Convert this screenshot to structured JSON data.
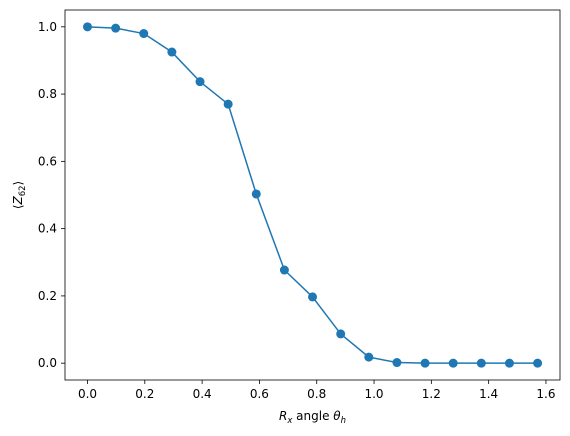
{
  "chart_data": {
    "type": "line",
    "title": "",
    "xlabel": {
      "base": "R",
      "sub": "x",
      "mid": " angle ",
      "theta": "θ",
      "theta_sub": "h"
    },
    "ylabel": {
      "left": "⟨",
      "base": "Z",
      "sub": "62",
      "right": "⟩"
    },
    "xlim": [
      -0.0785,
      1.649
    ],
    "ylim": [
      -0.05,
      1.05
    ],
    "xticks": [
      0.0,
      0.2,
      0.4,
      0.6,
      0.8,
      1.0,
      1.2,
      1.4,
      1.6
    ],
    "yticks": [
      0.0,
      0.2,
      0.4,
      0.6,
      0.8,
      1.0
    ],
    "xtick_labels": [
      "0.0",
      "0.2",
      "0.4",
      "0.6",
      "0.8",
      "1.0",
      "1.2",
      "1.4",
      "1.6"
    ],
    "ytick_labels": [
      "0.0",
      "0.2",
      "0.4",
      "0.6",
      "0.8",
      "1.0"
    ],
    "grid": false,
    "series": [
      {
        "color": "#1f77b4",
        "marker": "circle",
        "x": [
          0.0,
          0.0982,
          0.1963,
          0.2945,
          0.3927,
          0.4909,
          0.589,
          0.6872,
          0.7854,
          0.8836,
          0.9817,
          1.0799,
          1.1781,
          1.2763,
          1.3744,
          1.4726,
          1.5708
        ],
        "y": [
          1.0,
          0.996,
          0.98,
          0.925,
          0.837,
          0.77,
          0.503,
          0.277,
          0.197,
          0.087,
          0.018,
          0.002,
          0.0,
          0.0,
          0.0,
          0.0,
          0.0
        ]
      }
    ]
  }
}
